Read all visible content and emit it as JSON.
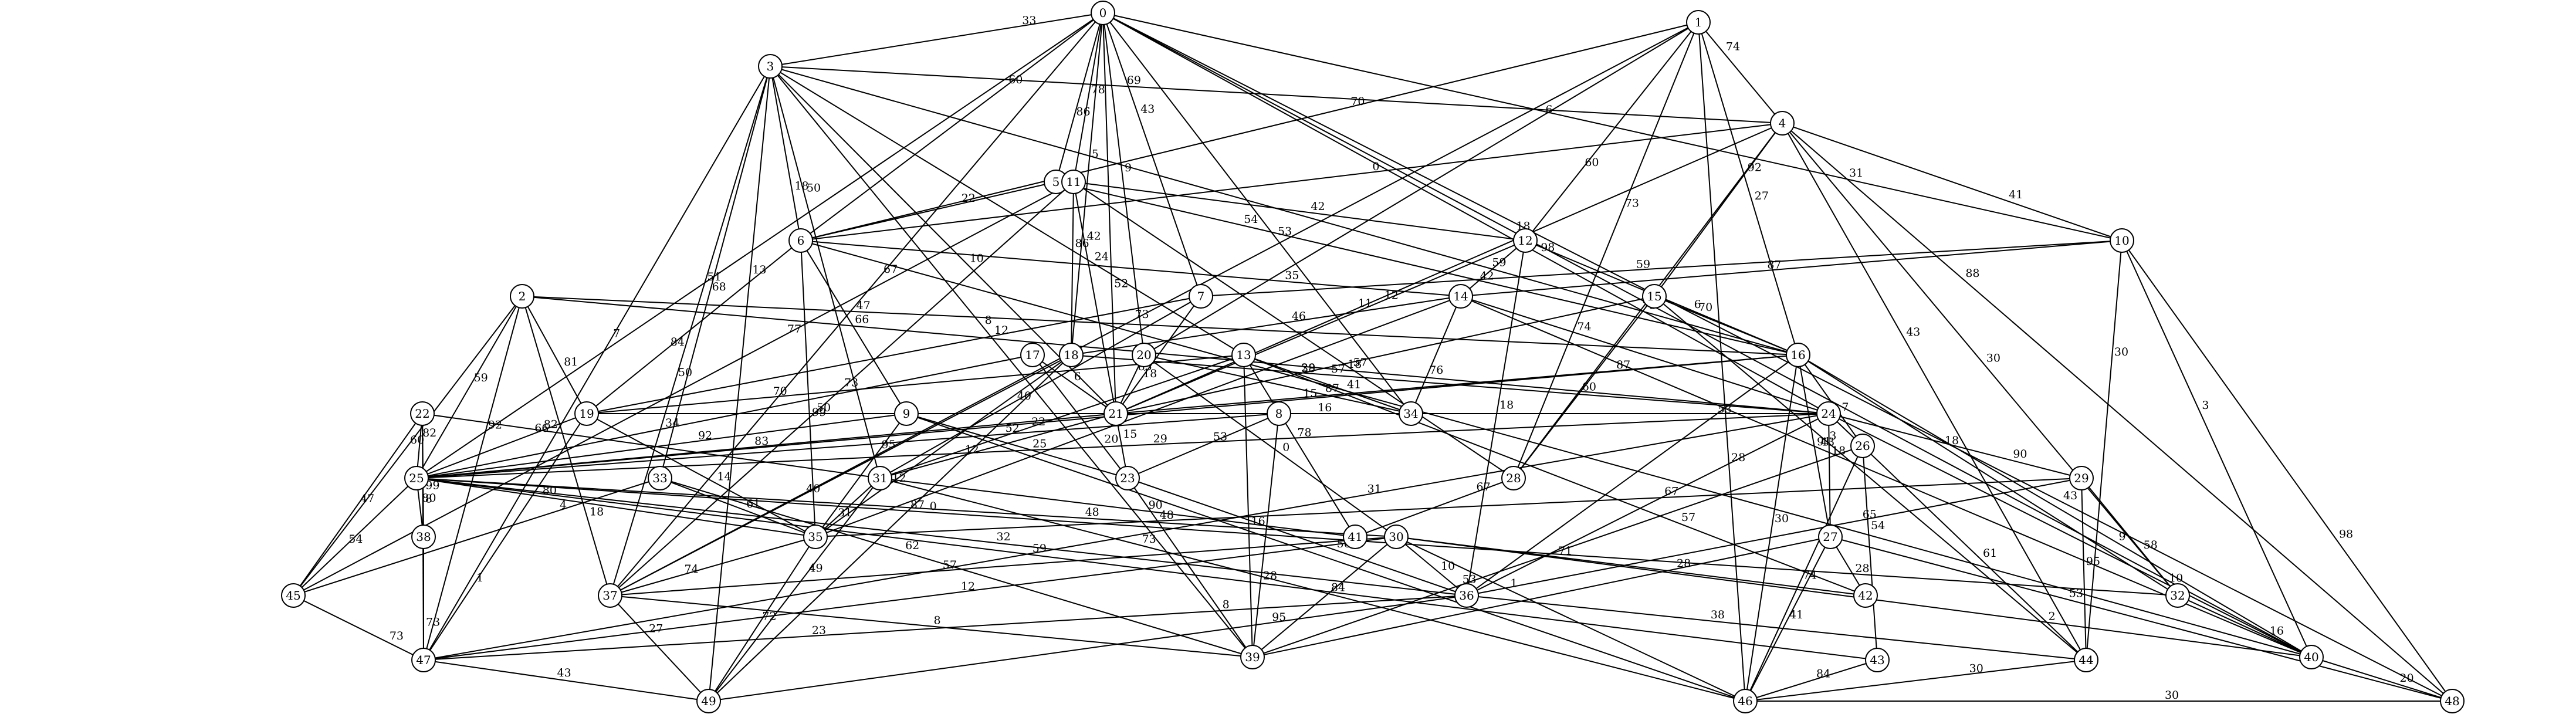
{
  "graph": {
    "nodes": [
      "0",
      "1",
      "2",
      "3",
      "4",
      "5",
      "6",
      "7",
      "8",
      "9",
      "10",
      "11",
      "12",
      "13",
      "14",
      "15",
      "16",
      "17",
      "18",
      "19",
      "20",
      "21",
      "22",
      "23",
      "24",
      "25",
      "26",
      "27",
      "28",
      "29",
      "30",
      "31",
      "32",
      "33",
      "34",
      "35",
      "36",
      "37",
      "38",
      "39",
      "40",
      "41",
      "42",
      "43",
      "44",
      "45",
      "46",
      "47",
      "48",
      "49"
    ],
    "edges": [
      [
        "0",
        "3",
        "33"
      ],
      [
        "0",
        "5",
        "86"
      ],
      [
        "0",
        "11",
        "78"
      ],
      [
        "0",
        "7",
        "43"
      ],
      [
        "0",
        "10",
        "31"
      ],
      [
        "0",
        "24",
        "98"
      ],
      [
        "0",
        "20",
        "9"
      ],
      [
        "0",
        "40",
        "18"
      ],
      [
        "0",
        "48",
        "43"
      ],
      [
        "0",
        "25",
        "51"
      ],
      [
        "0",
        "37",
        "67"
      ],
      [
        "0",
        "6",
        "60"
      ],
      [
        "0",
        "21",
        "52"
      ],
      [
        "0",
        "34",
        "53"
      ],
      [
        "0",
        "18",
        "5"
      ],
      [
        "1",
        "4",
        "74"
      ],
      [
        "1",
        "12",
        "60"
      ],
      [
        "1",
        "16",
        "27"
      ],
      [
        "1",
        "28",
        "73"
      ],
      [
        "1",
        "20",
        "6"
      ],
      [
        "1",
        "46",
        "28"
      ],
      [
        "1",
        "37",
        "73"
      ],
      [
        "1",
        "6",
        "70"
      ],
      [
        "2",
        "16",
        "47"
      ],
      [
        "2",
        "24",
        "18"
      ],
      [
        "2",
        "45",
        "60"
      ],
      [
        "2",
        "47",
        "92"
      ],
      [
        "2",
        "37",
        "18"
      ],
      [
        "2",
        "19",
        "81"
      ],
      [
        "2",
        "25",
        "59"
      ],
      [
        "3",
        "4",
        "69"
      ],
      [
        "3",
        "6",
        "18"
      ],
      [
        "3",
        "37",
        "50"
      ],
      [
        "3",
        "47",
        "7"
      ],
      [
        "3",
        "49",
        "13"
      ],
      [
        "3",
        "16",
        "59"
      ],
      [
        "3",
        "21",
        "10"
      ],
      [
        "3",
        "39",
        "8"
      ],
      [
        "3",
        "31",
        "50"
      ],
      [
        "3",
        "13",
        "24"
      ],
      [
        "3",
        "33",
        "68"
      ],
      [
        "4",
        "6",
        "0"
      ],
      [
        "4",
        "15",
        "92"
      ],
      [
        "4",
        "10",
        "41"
      ],
      [
        "4",
        "28",
        "73"
      ],
      [
        "4",
        "44",
        "43"
      ],
      [
        "4",
        "48",
        "88"
      ],
      [
        "4",
        "21",
        "11"
      ],
      [
        "4",
        "32",
        "30"
      ],
      [
        "5",
        "6",
        "22"
      ],
      [
        "5",
        "16",
        "54"
      ],
      [
        "6",
        "19",
        "84"
      ],
      [
        "6",
        "9",
        "66"
      ],
      [
        "6",
        "40",
        "41"
      ],
      [
        "6",
        "14",
        "35"
      ],
      [
        "6",
        "35",
        "99"
      ],
      [
        "7",
        "10",
        "59"
      ],
      [
        "7",
        "19",
        "12"
      ],
      [
        "7",
        "21",
        "18"
      ],
      [
        "7",
        "31",
        "40"
      ],
      [
        "8",
        "23",
        "53"
      ],
      [
        "8",
        "25",
        "52"
      ],
      [
        "8",
        "39",
        "28"
      ],
      [
        "9",
        "23",
        "25"
      ],
      [
        "9",
        "25",
        "92"
      ],
      [
        "9",
        "35",
        "95"
      ],
      [
        "9",
        "46",
        "0"
      ],
      [
        "10",
        "14",
        "87"
      ],
      [
        "10",
        "40",
        "3"
      ],
      [
        "10",
        "44",
        "30"
      ],
      [
        "10",
        "48",
        "98"
      ],
      [
        "11",
        "12",
        "42"
      ],
      [
        "11",
        "18",
        "86"
      ],
      [
        "11",
        "21",
        "42"
      ],
      [
        "11",
        "28",
        "57"
      ],
      [
        "11",
        "37",
        "73"
      ],
      [
        "11",
        "45",
        "77"
      ],
      [
        "12",
        "14",
        "42"
      ],
      [
        "12",
        "16",
        "6"
      ],
      [
        "12",
        "36",
        "18"
      ],
      [
        "12",
        "21",
        "12"
      ],
      [
        "13",
        "19",
        "70"
      ],
      [
        "13",
        "31",
        "22"
      ],
      [
        "13",
        "41",
        "78"
      ],
      [
        "13",
        "34",
        "38"
      ],
      [
        "13",
        "42",
        "57"
      ],
      [
        "13",
        "39",
        "16"
      ],
      [
        "14",
        "18",
        "46"
      ],
      [
        "14",
        "24",
        "74"
      ],
      [
        "14",
        "34",
        "76"
      ],
      [
        "14",
        "35",
        "15"
      ],
      [
        "14",
        "40",
        "43"
      ],
      [
        "15",
        "16",
        "70"
      ],
      [
        "15",
        "21",
        "29"
      ],
      [
        "15",
        "28",
        "60"
      ],
      [
        "15",
        "44",
        "3"
      ],
      [
        "16",
        "21",
        "87"
      ],
      [
        "16",
        "26",
        "7"
      ],
      [
        "16",
        "27",
        "91"
      ],
      [
        "16",
        "32",
        "18"
      ],
      [
        "16",
        "36",
        "53"
      ],
      [
        "16",
        "40",
        "9"
      ],
      [
        "16",
        "46",
        "30"
      ],
      [
        "16",
        "25",
        "15"
      ],
      [
        "17",
        "23",
        "20"
      ],
      [
        "17",
        "25",
        "34"
      ],
      [
        "17",
        "21",
        "6"
      ],
      [
        "18",
        "24",
        "57"
      ],
      [
        "18",
        "35",
        "12"
      ],
      [
        "18",
        "37",
        "40"
      ],
      [
        "18",
        "49",
        "87"
      ],
      [
        "19",
        "25",
        "66"
      ],
      [
        "19",
        "47",
        "1"
      ],
      [
        "19",
        "35",
        "14"
      ],
      [
        "19",
        "21",
        "50"
      ],
      [
        "20",
        "21",
        "85"
      ],
      [
        "20",
        "34",
        "87"
      ],
      [
        "20",
        "30",
        "0"
      ],
      [
        "21",
        "23",
        "15"
      ],
      [
        "21",
        "24",
        "16"
      ],
      [
        "21",
        "31",
        "12"
      ],
      [
        "21",
        "25",
        "83"
      ],
      [
        "22",
        "25",
        "82"
      ],
      [
        "22",
        "31",
        "82"
      ],
      [
        "22",
        "38",
        "99"
      ],
      [
        "22",
        "45",
        "47"
      ],
      [
        "22",
        "47",
        "8"
      ],
      [
        "23",
        "39",
        "8"
      ],
      [
        "23",
        "36",
        "56"
      ],
      [
        "24",
        "25",
        "29"
      ],
      [
        "24",
        "27",
        "18"
      ],
      [
        "24",
        "29",
        "90"
      ],
      [
        "24",
        "44",
        "61"
      ],
      [
        "24",
        "36",
        "67"
      ],
      [
        "24",
        "47",
        "31"
      ],
      [
        "24",
        "40",
        "10"
      ],
      [
        "25",
        "45",
        "54"
      ],
      [
        "25",
        "38",
        "80"
      ],
      [
        "25",
        "35",
        "80"
      ],
      [
        "25",
        "30",
        "48"
      ],
      [
        "25",
        "36",
        "32"
      ],
      [
        "25",
        "43",
        "59"
      ],
      [
        "25",
        "32",
        "0"
      ],
      [
        "26",
        "39",
        "53"
      ],
      [
        "26",
        "46",
        "74"
      ],
      [
        "26",
        "43",
        "54"
      ],
      [
        "27",
        "39",
        "28"
      ],
      [
        "27",
        "42",
        "28"
      ],
      [
        "27",
        "46",
        "41"
      ],
      [
        "27",
        "48",
        "53"
      ],
      [
        "28",
        "41",
        "67"
      ],
      [
        "29",
        "32",
        "58"
      ],
      [
        "29",
        "44",
        "95"
      ],
      [
        "29",
        "36",
        "65"
      ],
      [
        "29",
        "35",
        "48"
      ],
      [
        "30",
        "36",
        "10"
      ],
      [
        "30",
        "39",
        "84"
      ],
      [
        "30",
        "42",
        "71"
      ],
      [
        "30",
        "40",
        "2"
      ],
      [
        "30",
        "37",
        "57"
      ],
      [
        "30",
        "47",
        "12"
      ],
      [
        "30",
        "46",
        "1"
      ],
      [
        "31",
        "35",
        "31"
      ],
      [
        "31",
        "41",
        "90"
      ],
      [
        "31",
        "49",
        "49"
      ],
      [
        "31",
        "46",
        "73"
      ],
      [
        "32",
        "40",
        "16"
      ],
      [
        "33",
        "35",
        "61"
      ],
      [
        "33",
        "39",
        "62"
      ],
      [
        "33",
        "45",
        "4"
      ],
      [
        "35",
        "37",
        "74"
      ],
      [
        "35",
        "49",
        "72"
      ],
      [
        "36",
        "44",
        "38"
      ],
      [
        "36",
        "49",
        "95"
      ],
      [
        "36",
        "47",
        "23"
      ],
      [
        "37",
        "39",
        "8"
      ],
      [
        "37",
        "49",
        "27"
      ],
      [
        "38",
        "47",
        "73"
      ],
      [
        "40",
        "48",
        "20"
      ],
      [
        "43",
        "46",
        "84"
      ],
      [
        "44",
        "46",
        "30"
      ],
      [
        "45",
        "47",
        "73"
      ],
      [
        "46",
        "48",
        "30"
      ],
      [
        "47",
        "49",
        "43"
      ]
    ]
  }
}
